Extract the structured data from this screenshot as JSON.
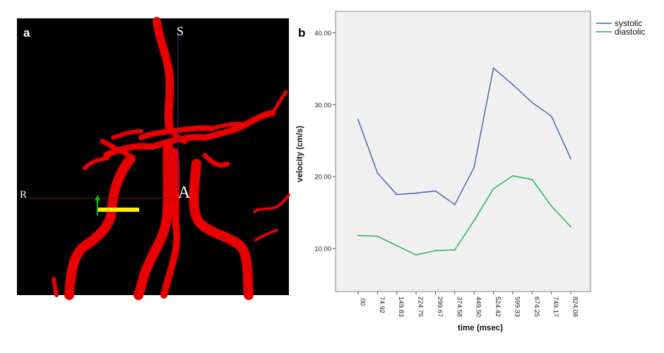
{
  "panels": {
    "a": {
      "label": "a",
      "orientation": {
        "superior": "S",
        "right": "R",
        "anterior": "A"
      }
    },
    "b": {
      "label": "b"
    }
  },
  "colors": {
    "image_background": "#000000",
    "vessel": "#e60000",
    "plot_background": "#f0f0f0",
    "systolic": "#3a64ac",
    "diastolic": "#1ab24c",
    "marker": "#ffee00"
  },
  "chart_data": {
    "type": "line",
    "xlabel": "time (msec)",
    "ylabel": "velocity (cm/s)",
    "ylim": [
      4.0,
      43.0
    ],
    "y_ticks": [
      "10.00",
      "20.00",
      "30.00",
      "40.00"
    ],
    "y_tick_values": [
      10,
      20,
      30,
      40
    ],
    "categories": [
      ".00",
      "74.92",
      "149.83",
      "224.75",
      "299.67",
      "374.58",
      "449.50",
      "524.42",
      "599.33",
      "674.25",
      "749.17",
      "824.08"
    ],
    "series": [
      {
        "name": "systolic",
        "values": [
          27.9,
          20.5,
          17.5,
          17.7,
          18.0,
          16.1,
          21.3,
          35.1,
          32.8,
          30.3,
          28.4,
          22.5
        ]
      },
      {
        "name": "diastolic",
        "values": [
          11.8,
          11.7,
          10.4,
          9.1,
          9.7,
          9.8,
          13.9,
          18.3,
          20.1,
          19.6,
          15.9,
          13.0
        ]
      }
    ],
    "legend": "top-right",
    "grid": false
  }
}
